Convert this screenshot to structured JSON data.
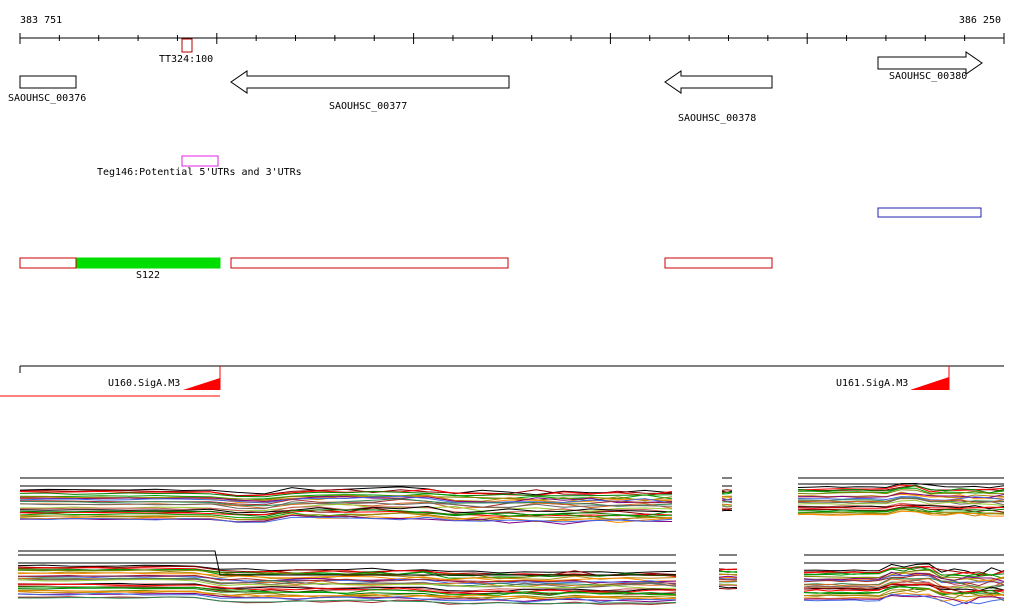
{
  "coordinates": {
    "start": "383 751",
    "end": "386 250"
  },
  "features": {
    "terminator": {
      "label": "TT324:100",
      "color": "#b00000"
    },
    "genes": [
      {
        "label": "SAOUHSC_00376",
        "strand": "none"
      },
      {
        "label": "SAOUHSC_00377",
        "strand": "minus"
      },
      {
        "label": "SAOUHSC_00378",
        "strand": "minus"
      },
      {
        "label": "SAOUHSC_00380",
        "strand": "plus"
      }
    ],
    "utr": {
      "label": "Teg146:Potential 5'UTRs and 3'UTRs",
      "color": "#e020e0"
    },
    "blue_box": {
      "color": "#2020b0"
    },
    "segments": {
      "label": "S122",
      "outline_color": "#cc0000",
      "fill_color": "#00dd00"
    },
    "promoters": [
      {
        "label": "U160.SigA.M3"
      },
      {
        "label": "U161.SigA.M3"
      }
    ]
  },
  "colors": {
    "axis": "#000000",
    "promoter_mark": "#ff0000",
    "expression_lines": [
      "#000000",
      "#8b0000",
      "#ff0000",
      "#008000",
      "#00a000",
      "#808000",
      "#b8860b",
      "#ff8c00",
      "#800080",
      "#4169e1",
      "#a52a2a",
      "#2e8b57",
      "#d2691e",
      "#696969",
      "#9acd32",
      "#cd5c5c"
    ]
  }
}
